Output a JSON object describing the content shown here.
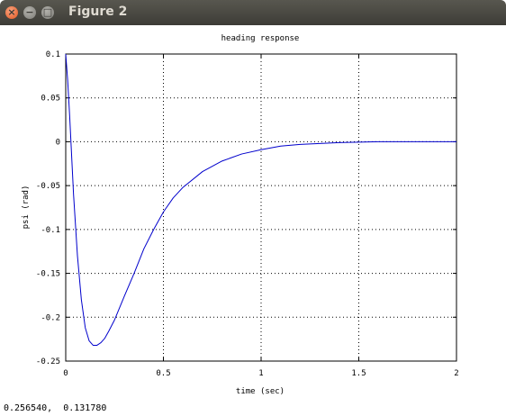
{
  "window": {
    "title": "Figure 2",
    "close_glyph": "×",
    "minimize_glyph": "−",
    "maximize_glyph": "□"
  },
  "status": {
    "coords": "0.256540,  0.131780"
  },
  "chart_data": {
    "type": "line",
    "title": "heading response",
    "xlabel": "time (sec)",
    "ylabel": "psi (rad)",
    "xlim": [
      0,
      2
    ],
    "ylim": [
      -0.25,
      0.1
    ],
    "grid": true,
    "xticks": [
      0,
      0.5,
      1,
      1.5,
      2
    ],
    "xtick_labels": [
      "0",
      "0.5",
      "1",
      "1.5",
      "2"
    ],
    "yticks": [
      0.1,
      0.05,
      0,
      -0.05,
      -0.1,
      -0.15,
      -0.2,
      -0.25
    ],
    "ytick_labels": [
      "0.1",
      "0.05",
      "0",
      "-0.05",
      "-0.1",
      "-0.15",
      "-0.2",
      "-0.25"
    ],
    "series": [
      {
        "color": "#0000cc",
        "x": [
          0,
          0.01,
          0.02,
          0.04,
          0.06,
          0.08,
          0.1,
          0.12,
          0.14,
          0.16,
          0.18,
          0.2,
          0.22,
          0.25,
          0.3,
          0.35,
          0.4,
          0.45,
          0.5,
          0.55,
          0.6,
          0.7,
          0.8,
          0.9,
          1.0,
          1.1,
          1.2,
          1.3,
          1.4,
          1.5,
          1.6,
          1.8,
          2.0
        ],
        "y": [
          0.1,
          0.07,
          0.03,
          -0.06,
          -0.13,
          -0.18,
          -0.212,
          -0.227,
          -0.232,
          -0.232,
          -0.229,
          -0.224,
          -0.216,
          -0.203,
          -0.176,
          -0.15,
          -0.122,
          -0.1,
          -0.08,
          -0.064,
          -0.052,
          -0.034,
          -0.022,
          -0.014,
          -0.009,
          -0.005,
          -0.003,
          -0.002,
          -0.001,
          -0.0005,
          0,
          0,
          0
        ]
      }
    ]
  }
}
